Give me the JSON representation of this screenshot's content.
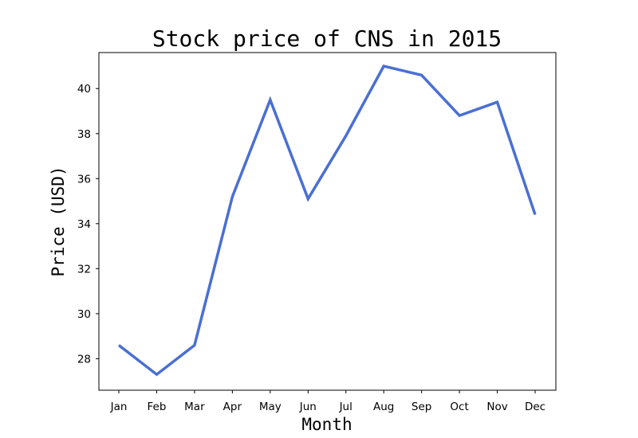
{
  "chart_data": {
    "type": "line",
    "title": "Stock price of CNS in 2015",
    "xlabel": "Month",
    "ylabel": "Price (USD)",
    "categories": [
      "Jan",
      "Feb",
      "Mar",
      "Apr",
      "May",
      "Jun",
      "Jul",
      "Aug",
      "Sep",
      "Oct",
      "Nov",
      "Dec"
    ],
    "series": [
      {
        "values": [
          28.6,
          27.3,
          28.6,
          35.2,
          39.5,
          35.1,
          37.9,
          41.0,
          40.6,
          38.8,
          39.4,
          34.4
        ],
        "color": "#4a6fd4"
      }
    ],
    "yticks": [
      28,
      30,
      32,
      34,
      36,
      38,
      40
    ],
    "ylim": [
      26.6,
      41.6
    ],
    "grid": false,
    "legend": false
  }
}
